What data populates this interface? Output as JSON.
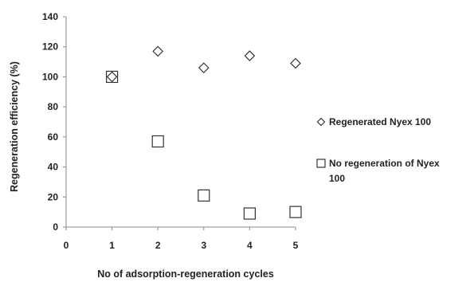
{
  "chart_data": {
    "type": "scatter",
    "title": "",
    "xlabel": "No of adsorption-regeneration cycles",
    "ylabel": "Regeneration efficiency (%)",
    "xlim": [
      0,
      5
    ],
    "ylim": [
      0,
      140
    ],
    "x_ticks": [
      "0",
      "1",
      "2",
      "3",
      "4",
      "5"
    ],
    "y_ticks": [
      "0",
      "20",
      "40",
      "60",
      "80",
      "100",
      "120",
      "140"
    ],
    "grid": false,
    "legend_position": "right",
    "series": [
      {
        "name": "Regenerated Nyex 100",
        "marker": "diamond",
        "color": "#333333",
        "x": [
          1,
          2,
          3,
          4,
          5
        ],
        "y": [
          100,
          117,
          106,
          114,
          109
        ]
      },
      {
        "name": "No regeneration of Nyex 100",
        "marker": "square",
        "color": "#333333",
        "x": [
          1,
          2,
          3,
          4,
          5
        ],
        "y": [
          100,
          57,
          21,
          9,
          10
        ]
      }
    ]
  }
}
